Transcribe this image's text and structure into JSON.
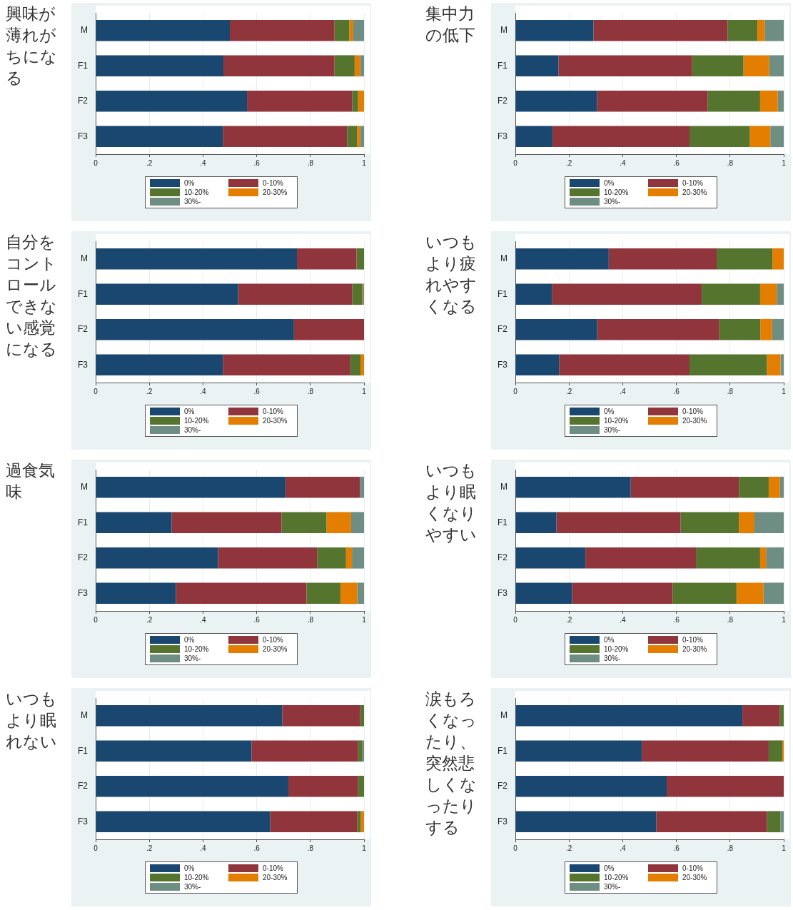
{
  "chart_data": [
    {
      "type": "bar",
      "title": "興味が薄れがちになる",
      "categories": [
        "M",
        "F1",
        "F2",
        "F3"
      ],
      "orientation": "horizontal",
      "stacked": true,
      "xlim": [
        0,
        1
      ],
      "xticks": [
        {
          "value": 0,
          "label": "0"
        },
        {
          "value": 0.2,
          "label": ".2"
        },
        {
          "value": 0.4,
          "label": ".4"
        },
        {
          "value": 0.6,
          "label": ".6"
        },
        {
          "value": 0.8,
          "label": ".8"
        },
        {
          "value": 1,
          "label": "1"
        }
      ],
      "grid": "x",
      "legend": "bottom",
      "series": [
        {
          "name": "0%",
          "color": "#1a476f",
          "values": [
            0.5,
            0.476,
            0.564,
            0.474
          ]
        },
        {
          "name": "0-10%",
          "color": "#90353b",
          "values": [
            0.39,
            0.414,
            0.392,
            0.463
          ]
        },
        {
          "name": "10-20%",
          "color": "#55752f",
          "values": [
            0.055,
            0.075,
            0.022,
            0.037
          ]
        },
        {
          "name": "20-30%",
          "color": "#e37e00",
          "values": [
            0.015,
            0.021,
            0.022,
            0.012
          ]
        },
        {
          "name": "30%-",
          "color": "#6e8e84",
          "values": [
            0.04,
            0.014,
            0,
            0.014
          ]
        }
      ]
    },
    {
      "type": "bar",
      "title": "集中力の低下",
      "categories": [
        "M",
        "F1",
        "F2",
        "F3"
      ],
      "orientation": "horizontal",
      "stacked": true,
      "xlim": [
        0,
        1
      ],
      "xticks": [
        {
          "value": 0,
          "label": "0"
        },
        {
          "value": 0.2,
          "label": ".2"
        },
        {
          "value": 0.4,
          "label": ".4"
        },
        {
          "value": 0.6,
          "label": ".6"
        },
        {
          "value": 0.8,
          "label": ".8"
        },
        {
          "value": 1,
          "label": "1"
        }
      ],
      "grid": "x",
      "legend": "bottom",
      "series": [
        {
          "name": "0%",
          "color": "#1a476f",
          "values": [
            0.291,
            0.161,
            0.304,
            0.138
          ]
        },
        {
          "name": "0-10%",
          "color": "#90353b",
          "values": [
            0.5,
            0.498,
            0.413,
            0.511
          ]
        },
        {
          "name": "10-20%",
          "color": "#55752f",
          "values": [
            0.111,
            0.191,
            0.195,
            0.225
          ]
        },
        {
          "name": "20-30%",
          "color": "#e37e00",
          "values": [
            0.027,
            0.096,
            0.066,
            0.076
          ]
        },
        {
          "name": "30%-",
          "color": "#6e8e84",
          "values": [
            0.071,
            0.054,
            0.022,
            0.05
          ]
        }
      ]
    },
    {
      "type": "bar",
      "title": "自分をコントロールできない感覚になる",
      "categories": [
        "M",
        "F1",
        "F2",
        "F3"
      ],
      "orientation": "horizontal",
      "stacked": true,
      "xlim": [
        0,
        1
      ],
      "xticks": [
        {
          "value": 0,
          "label": "0"
        },
        {
          "value": 0.2,
          "label": ".2"
        },
        {
          "value": 0.4,
          "label": ".4"
        },
        {
          "value": 0.6,
          "label": ".6"
        },
        {
          "value": 0.8,
          "label": ".8"
        },
        {
          "value": 1,
          "label": "1"
        }
      ],
      "grid": "x",
      "legend": "bottom",
      "series": [
        {
          "name": "0%",
          "color": "#1a476f",
          "values": [
            0.75,
            0.531,
            0.739,
            0.474
          ]
        },
        {
          "name": "0-10%",
          "color": "#90353b",
          "values": [
            0.222,
            0.425,
            0.261,
            0.475
          ]
        },
        {
          "name": "10-20%",
          "color": "#55752f",
          "values": [
            0.028,
            0.036,
            0,
            0.038
          ]
        },
        {
          "name": "20-30%",
          "color": "#e37e00",
          "values": [
            0,
            0.003,
            0,
            0.013
          ]
        },
        {
          "name": "30%-",
          "color": "#6e8e84",
          "values": [
            0,
            0.005,
            0,
            0
          ]
        }
      ]
    },
    {
      "type": "bar",
      "title": "いつもより疲れやすくなる",
      "categories": [
        "M",
        "F1",
        "F2",
        "F3"
      ],
      "orientation": "horizontal",
      "stacked": true,
      "xlim": [
        0,
        1
      ],
      "xticks": [
        {
          "value": 0,
          "label": "0"
        },
        {
          "value": 0.2,
          "label": ".2"
        },
        {
          "value": 0.4,
          "label": ".4"
        },
        {
          "value": 0.6,
          "label": ".6"
        },
        {
          "value": 0.8,
          "label": ".8"
        },
        {
          "value": 1,
          "label": "1"
        }
      ],
      "grid": "x",
      "legend": "bottom",
      "series": [
        {
          "name": "0%",
          "color": "#1a476f",
          "values": [
            0.348,
            0.136,
            0.305,
            0.163
          ]
        },
        {
          "name": "0-10%",
          "color": "#90353b",
          "values": [
            0.402,
            0.558,
            0.455,
            0.486
          ]
        },
        {
          "name": "10-20%",
          "color": "#55752f",
          "values": [
            0.208,
            0.218,
            0.153,
            0.288
          ]
        },
        {
          "name": "20-30%",
          "color": "#e37e00",
          "values": [
            0.042,
            0.062,
            0.044,
            0.051
          ]
        },
        {
          "name": "30%-",
          "color": "#6e8e84",
          "values": [
            0,
            0.026,
            0.043,
            0.012
          ]
        }
      ]
    },
    {
      "type": "bar",
      "title": "過食気味",
      "categories": [
        "M",
        "F1",
        "F2",
        "F3"
      ],
      "orientation": "horizontal",
      "stacked": true,
      "xlim": [
        0,
        1
      ],
      "xticks": [
        {
          "value": 0,
          "label": "0"
        },
        {
          "value": 0.2,
          "label": ".2"
        },
        {
          "value": 0.4,
          "label": ".4"
        },
        {
          "value": 0.6,
          "label": ".6"
        },
        {
          "value": 0.8,
          "label": ".8"
        },
        {
          "value": 1,
          "label": "1"
        }
      ],
      "grid": "x",
      "legend": "bottom",
      "series": [
        {
          "name": "0%",
          "color": "#1a476f",
          "values": [
            0.707,
            0.283,
            0.456,
            0.299
          ]
        },
        {
          "name": "0-10%",
          "color": "#90353b",
          "values": [
            0.278,
            0.41,
            0.369,
            0.487
          ]
        },
        {
          "name": "10-20%",
          "color": "#55752f",
          "values": [
            0,
            0.167,
            0.108,
            0.126
          ]
        },
        {
          "name": "20-30%",
          "color": "#e37e00",
          "values": [
            0,
            0.092,
            0.022,
            0.063
          ]
        },
        {
          "name": "30%-",
          "color": "#6e8e84",
          "values": [
            0.015,
            0.048,
            0.045,
            0.025
          ]
        }
      ]
    },
    {
      "type": "bar",
      "title": "いつもより眠くなりやすい",
      "categories": [
        "M",
        "F1",
        "F2",
        "F3"
      ],
      "orientation": "horizontal",
      "stacked": true,
      "xlim": [
        0,
        1
      ],
      "xticks": [
        {
          "value": 0,
          "label": "0"
        },
        {
          "value": 0.2,
          "label": ".2"
        },
        {
          "value": 0.4,
          "label": ".4"
        },
        {
          "value": 0.6,
          "label": ".6"
        },
        {
          "value": 0.8,
          "label": ".8"
        },
        {
          "value": 1,
          "label": "1"
        }
      ],
      "grid": "x",
      "legend": "bottom",
      "series": [
        {
          "name": "0%",
          "color": "#1a476f",
          "values": [
            0.43,
            0.153,
            0.261,
            0.211
          ]
        },
        {
          "name": "0-10%",
          "color": "#90353b",
          "values": [
            0.403,
            0.463,
            0.412,
            0.375
          ]
        },
        {
          "name": "10-20%",
          "color": "#55752f",
          "values": [
            0.111,
            0.217,
            0.239,
            0.238
          ]
        },
        {
          "name": "20-30%",
          "color": "#e37e00",
          "values": [
            0.042,
            0.058,
            0.022,
            0.101
          ]
        },
        {
          "name": "30%-",
          "color": "#6e8e84",
          "values": [
            0.014,
            0.109,
            0.066,
            0.075
          ]
        }
      ]
    },
    {
      "type": "bar",
      "title": "いつもより眠れない",
      "categories": [
        "M",
        "F1",
        "F2",
        "F3"
      ],
      "orientation": "horizontal",
      "stacked": true,
      "xlim": [
        0,
        1
      ],
      "xticks": [
        {
          "value": 0,
          "label": "0"
        },
        {
          "value": 0.2,
          "label": ".2"
        },
        {
          "value": 0.4,
          "label": ".4"
        },
        {
          "value": 0.6,
          "label": ".6"
        },
        {
          "value": 0.8,
          "label": ".8"
        },
        {
          "value": 1,
          "label": "1"
        }
      ],
      "grid": "x",
      "legend": "bottom",
      "series": [
        {
          "name": "0%",
          "color": "#1a476f",
          "values": [
            0.695,
            0.581,
            0.718,
            0.65
          ]
        },
        {
          "name": "0-10%",
          "color": "#90353b",
          "values": [
            0.291,
            0.397,
            0.26,
            0.325
          ]
        },
        {
          "name": "10-20%",
          "color": "#55752f",
          "values": [
            0.014,
            0.016,
            0.022,
            0.013
          ]
        },
        {
          "name": "20-30%",
          "color": "#e37e00",
          "values": [
            0,
            0,
            0,
            0.012
          ]
        },
        {
          "name": "30%-",
          "color": "#6e8e84",
          "values": [
            0,
            0.006,
            0,
            0
          ]
        }
      ]
    },
    {
      "type": "bar",
      "title": "涙もろくなったり、突然悲しくなったりする",
      "categories": [
        "M",
        "F1",
        "F2",
        "F3"
      ],
      "orientation": "horizontal",
      "stacked": true,
      "xlim": [
        0,
        1
      ],
      "xticks": [
        {
          "value": 0,
          "label": "0"
        },
        {
          "value": 0.2,
          "label": ".2"
        },
        {
          "value": 0.4,
          "label": ".4"
        },
        {
          "value": 0.6,
          "label": ".6"
        },
        {
          "value": 0.8,
          "label": ".8"
        },
        {
          "value": 1,
          "label": "1"
        }
      ],
      "grid": "x",
      "legend": "bottom",
      "series": [
        {
          "name": "0%",
          "color": "#1a476f",
          "values": [
            0.846,
            0.471,
            0.564,
            0.525
          ]
        },
        {
          "name": "0-10%",
          "color": "#90353b",
          "values": [
            0.14,
            0.473,
            0.436,
            0.413
          ]
        },
        {
          "name": "10-20%",
          "color": "#55752f",
          "values": [
            0.014,
            0.051,
            0,
            0.05
          ]
        },
        {
          "name": "20-30%",
          "color": "#e37e00",
          "values": [
            0,
            0.005,
            0,
            0
          ]
        },
        {
          "name": "30%-",
          "color": "#6e8e84",
          "values": [
            0,
            0,
            0,
            0.012
          ]
        }
      ]
    }
  ]
}
